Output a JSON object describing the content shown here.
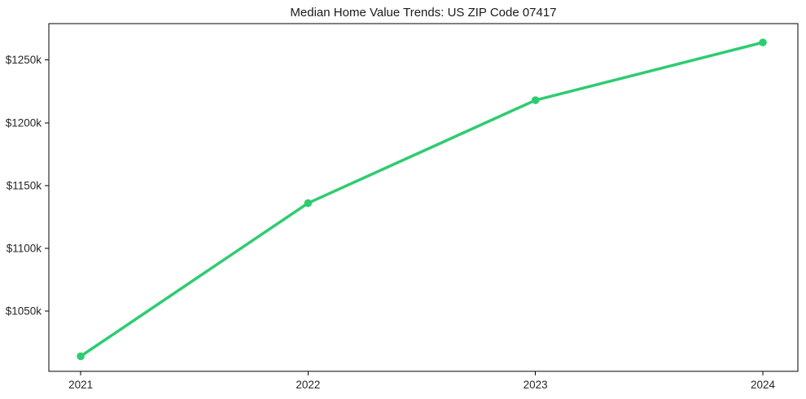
{
  "figure": {
    "background": "#ffffff",
    "border_color": "#000000",
    "text_color": "#262626"
  },
  "chart_data": {
    "type": "line",
    "title": "Median Home Value Trends: US ZIP Code 07417",
    "xlabel": "",
    "ylabel": "",
    "categories": [
      "2021",
      "2022",
      "2023",
      "2024"
    ],
    "x": [
      2021,
      2022,
      2023,
      2024
    ],
    "series": [
      {
        "name": "median-home-value",
        "values": [
          1014,
          1136,
          1218,
          1264
        ],
        "unit": "thousand USD",
        "color": "#2ecc71",
        "marker": "circle"
      }
    ],
    "y_ticks": [
      1050,
      1100,
      1150,
      1200,
      1250
    ],
    "y_tick_labels": [
      "$1050k",
      "$1100k",
      "$1150k",
      "$1200k",
      "$1250k"
    ],
    "x_tick_labels": [
      "2021",
      "2022",
      "2023",
      "2024"
    ],
    "ylim": [
      1002,
      1279
    ],
    "xlim": [
      2020.86,
      2024.154
    ],
    "grid": false,
    "legend": null
  }
}
